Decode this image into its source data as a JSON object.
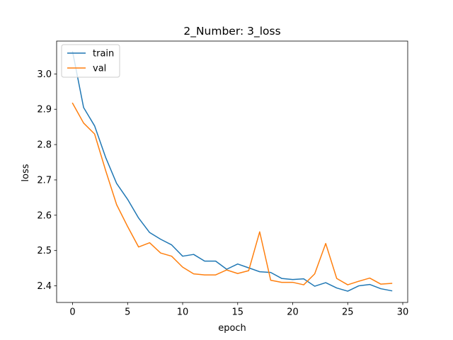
{
  "chart_data": {
    "type": "line",
    "title": "2_Number: 3_loss",
    "xlabel": "epoch",
    "ylabel": "loss",
    "xlim": [
      -1.45,
      30.45
    ],
    "ylim": [
      2.353,
      3.093
    ],
    "xticks": [
      0,
      5,
      10,
      15,
      20,
      25,
      30
    ],
    "yticks": [
      2.4,
      2.5,
      2.6,
      2.7,
      2.8,
      2.9,
      3.0
    ],
    "grid": false,
    "legend_position": "top-left",
    "x": [
      0,
      1,
      2,
      3,
      4,
      5,
      6,
      7,
      8,
      9,
      10,
      11,
      12,
      13,
      14,
      15,
      16,
      17,
      18,
      19,
      20,
      21,
      22,
      23,
      24,
      25,
      26,
      27,
      28,
      29
    ],
    "series": [
      {
        "name": "train",
        "color": "#1f77b4",
        "values": [
          3.063,
          2.905,
          2.853,
          2.764,
          2.69,
          2.645,
          2.592,
          2.551,
          2.532,
          2.516,
          2.484,
          2.489,
          2.47,
          2.47,
          2.447,
          2.462,
          2.451,
          2.44,
          2.438,
          2.421,
          2.418,
          2.42,
          2.399,
          2.409,
          2.394,
          2.385,
          2.4,
          2.404,
          2.392,
          2.386
        ]
      },
      {
        "name": "val",
        "color": "#ff7f0e",
        "values": [
          2.917,
          2.861,
          2.83,
          2.727,
          2.63,
          2.568,
          2.51,
          2.522,
          2.493,
          2.484,
          2.453,
          2.434,
          2.431,
          2.431,
          2.445,
          2.435,
          2.443,
          2.553,
          2.416,
          2.41,
          2.41,
          2.403,
          2.434,
          2.52,
          2.421,
          2.403,
          2.413,
          2.422,
          2.405,
          2.407
        ]
      }
    ]
  }
}
